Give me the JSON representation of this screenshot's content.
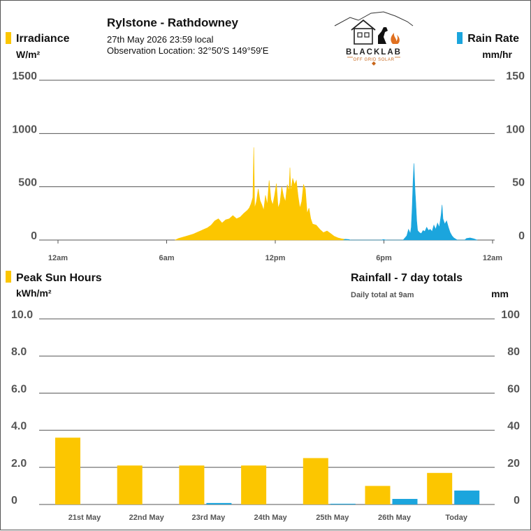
{
  "header": {
    "title": "Rylstone - Rathdowney",
    "timestamp": "27th May 2026  23:59 local",
    "location": "Observation Location: 32°50'S 149°59'E"
  },
  "logo": {
    "brand": "BLACKLAB",
    "tagline": "OFF GRID SOLAR"
  },
  "colors": {
    "irradiance": "#fcc600",
    "rain": "#1ba5dd",
    "grid": "#555555",
    "text": "#111111",
    "axis_text": "#555555"
  },
  "chart_data": [
    {
      "type": "area",
      "title": "",
      "left_axis": {
        "title": "Irradiance",
        "unit": "W/m²",
        "ticks": [
          "1500",
          "1000",
          "500",
          "0"
        ],
        "range": [
          0,
          1500
        ]
      },
      "right_axis": {
        "title": "Rain Rate",
        "unit": "mm/hr",
        "ticks": [
          "150",
          "100",
          "50",
          "0"
        ],
        "range": [
          0,
          150
        ]
      },
      "x_ticks": [
        "12am",
        "6am",
        "12pm",
        "6pm",
        "12am"
      ],
      "x_range_hours": [
        0,
        24
      ],
      "grid": true,
      "series": [
        {
          "name": "Irradiance",
          "axis": "left",
          "points": [
            [
              7.0,
              0
            ],
            [
              7.2,
              15
            ],
            [
              7.4,
              25
            ],
            [
              7.6,
              35
            ],
            [
              7.8,
              45
            ],
            [
              8.0,
              55
            ],
            [
              8.2,
              70
            ],
            [
              8.4,
              85
            ],
            [
              8.6,
              100
            ],
            [
              8.8,
              115
            ],
            [
              9.0,
              140
            ],
            [
              9.2,
              180
            ],
            [
              9.4,
              200
            ],
            [
              9.6,
              160
            ],
            [
              9.8,
              190
            ],
            [
              10.0,
              200
            ],
            [
              10.2,
              230
            ],
            [
              10.4,
              200
            ],
            [
              10.6,
              215
            ],
            [
              10.8,
              250
            ],
            [
              11.0,
              280
            ],
            [
              11.1,
              300
            ],
            [
              11.2,
              340
            ],
            [
              11.3,
              400
            ],
            [
              11.35,
              870
            ],
            [
              11.4,
              300
            ],
            [
              11.5,
              360
            ],
            [
              11.6,
              480
            ],
            [
              11.7,
              370
            ],
            [
              11.8,
              330
            ],
            [
              11.9,
              280
            ],
            [
              12.0,
              420
            ],
            [
              12.1,
              330
            ],
            [
              12.2,
              560
            ],
            [
              12.3,
              380
            ],
            [
              12.4,
              330
            ],
            [
              12.5,
              420
            ],
            [
              12.6,
              530
            ],
            [
              12.7,
              300
            ],
            [
              12.8,
              350
            ],
            [
              12.9,
              500
            ],
            [
              13.0,
              410
            ],
            [
              13.1,
              360
            ],
            [
              13.2,
              520
            ],
            [
              13.3,
              460
            ],
            [
              13.35,
              680
            ],
            [
              13.4,
              450
            ],
            [
              13.5,
              580
            ],
            [
              13.6,
              520
            ],
            [
              13.7,
              560
            ],
            [
              13.8,
              410
            ],
            [
              13.9,
              300
            ],
            [
              14.0,
              360
            ],
            [
              14.1,
              520
            ],
            [
              14.2,
              480
            ],
            [
              14.3,
              250
            ],
            [
              14.4,
              300
            ],
            [
              14.5,
              200
            ],
            [
              14.6,
              150
            ],
            [
              14.8,
              140
            ],
            [
              15.0,
              100
            ],
            [
              15.2,
              70
            ],
            [
              15.4,
              85
            ],
            [
              15.6,
              60
            ],
            [
              15.8,
              35
            ],
            [
              16.0,
              20
            ],
            [
              16.2,
              12
            ],
            [
              16.4,
              6
            ],
            [
              16.6,
              0
            ]
          ]
        },
        {
          "name": "Rain Rate",
          "axis": "right",
          "points": [
            [
              16.3,
              0
            ],
            [
              16.4,
              0.8
            ],
            [
              16.6,
              0.5
            ],
            [
              16.7,
              0
            ],
            [
              18.4,
              0
            ],
            [
              18.5,
              0.5
            ],
            [
              18.7,
              0
            ],
            [
              19.6,
              0
            ],
            [
              19.7,
              2
            ],
            [
              19.8,
              4
            ],
            [
              19.9,
              10
            ],
            [
              20.0,
              6
            ],
            [
              20.05,
              12
            ],
            [
              20.1,
              30
            ],
            [
              20.15,
              55
            ],
            [
              20.2,
              72
            ],
            [
              20.25,
              50
            ],
            [
              20.3,
              35
            ],
            [
              20.35,
              18
            ],
            [
              20.4,
              9
            ],
            [
              20.5,
              7
            ],
            [
              20.6,
              6
            ],
            [
              20.7,
              9
            ],
            [
              20.8,
              8
            ],
            [
              20.9,
              12
            ],
            [
              21.0,
              9
            ],
            [
              21.1,
              10
            ],
            [
              21.2,
              8
            ],
            [
              21.3,
              14
            ],
            [
              21.4,
              10
            ],
            [
              21.5,
              16
            ],
            [
              21.6,
              12
            ],
            [
              21.7,
              24
            ],
            [
              21.75,
              33
            ],
            [
              21.8,
              20
            ],
            [
              21.9,
              15
            ],
            [
              22.0,
              18
            ],
            [
              22.1,
              12
            ],
            [
              22.2,
              7
            ],
            [
              22.3,
              4
            ],
            [
              22.4,
              2
            ],
            [
              22.5,
              1
            ],
            [
              22.6,
              0
            ],
            [
              23.0,
              0
            ],
            [
              23.1,
              1.5
            ],
            [
              23.3,
              2
            ],
            [
              23.5,
              1.2
            ],
            [
              23.7,
              0
            ]
          ]
        }
      ]
    },
    {
      "type": "bar",
      "title": "",
      "left_axis": {
        "title": "Peak Sun Hours",
        "unit": "kWh/m²",
        "ticks": [
          "10.0",
          "8.0",
          "6.0",
          "4.0",
          "2.0",
          "0"
        ],
        "range": [
          0,
          10
        ]
      },
      "right_axis": {
        "title": "Rainfall - 7 day totals",
        "subtitle": "Daily total at 9am",
        "unit": "mm",
        "ticks": [
          "100",
          "80",
          "60",
          "40",
          "20",
          "0"
        ],
        "range": [
          0,
          100
        ]
      },
      "categories": [
        "21st May",
        "22nd May",
        "23rd May",
        "24th May",
        "25th May",
        "26th May",
        "Today"
      ],
      "grid": true,
      "series": [
        {
          "name": "Peak Sun Hours",
          "axis": "left",
          "values": [
            3.6,
            2.1,
            2.1,
            2.1,
            2.5,
            1.0,
            1.7
          ]
        },
        {
          "name": "Rainfall",
          "axis": "right",
          "values": [
            0,
            0,
            0.8,
            0,
            0.4,
            3.0,
            7.5
          ]
        }
      ]
    }
  ]
}
